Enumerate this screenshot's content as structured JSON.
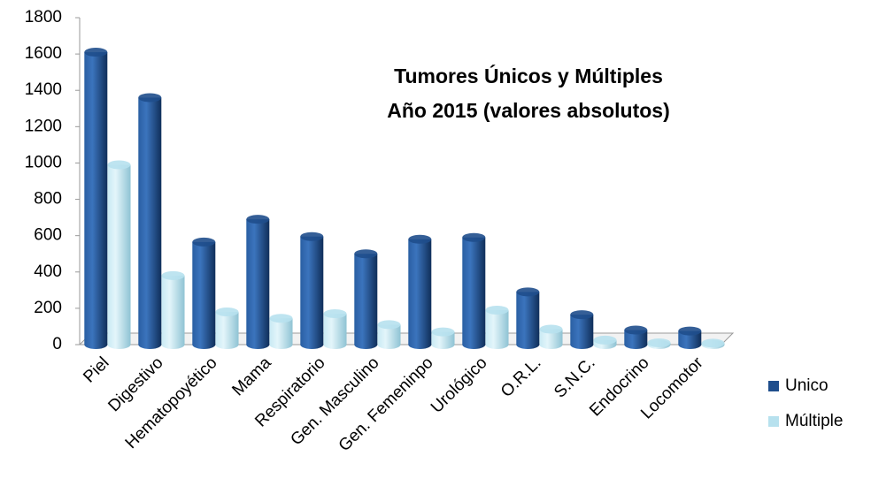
{
  "chart_data": {
    "type": "bar",
    "title": [
      "Tumores Únicos y Múltiples",
      "Año 2015 (valores absolutos)"
    ],
    "categories": [
      "Piel",
      "Digestivo",
      "Hematopoyético",
      "Mama",
      "Respiratorio",
      "Gen. Masculino",
      "Gen. Femeninpo",
      "Urológico",
      "O.R.L.",
      "S.N.C.",
      "Endocrino",
      "Locomotor"
    ],
    "series": [
      {
        "name": "Unico",
        "color": "#1f4e8c",
        "values": [
          1610,
          1360,
          565,
          690,
          595,
          500,
          580,
          590,
          290,
          165,
          80,
          75
        ]
      },
      {
        "name": "Múltiple",
        "color": "#b7e1ee",
        "values": [
          990,
          380,
          180,
          145,
          170,
          110,
          70,
          190,
          85,
          25,
          10,
          8
        ]
      }
    ],
    "ylim": [
      0,
      1800
    ],
    "yticks": [
      0,
      200,
      400,
      600,
      800,
      1000,
      1200,
      1400,
      1600,
      1800
    ],
    "legend": "right"
  }
}
